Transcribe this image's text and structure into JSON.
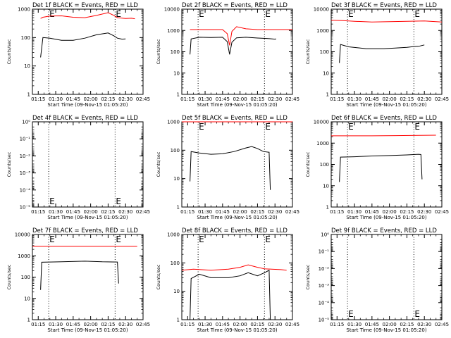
{
  "page": {
    "background": "#ffffff",
    "colors": {
      "events": "#000000",
      "lld": "#ff0000"
    }
  },
  "chart_data": [
    {
      "type": "line",
      "title": "Det 1f BLACK = Events, RED = LLD",
      "xlabel": "Start Time (09-Nov-15 01:05:20)",
      "ylabel": "Counts/sec",
      "x_ticks": [
        "01:15",
        "01:30",
        "01:45",
        "02:00",
        "02:15",
        "02:30",
        "02:45"
      ],
      "xlim_minutes": [
        5,
        100
      ],
      "y_scale": "log",
      "ylim": [
        1,
        1000
      ],
      "y_ticks": [
        "1",
        "10",
        "100",
        "1000"
      ],
      "vlines_minutes": [
        19,
        76
      ],
      "annotations": [
        "E",
        "E"
      ],
      "series": [
        {
          "color": "#ff0000",
          "x": [
            12,
            14,
            20,
            30,
            40,
            50,
            60,
            70,
            75,
            78,
            85,
            90,
            93
          ],
          "y": [
            470,
            520,
            570,
            580,
            520,
            500,
            600,
            750,
            600,
            500,
            470,
            480,
            460
          ]
        },
        {
          "color": "#000000",
          "x": [
            12,
            14,
            20,
            30,
            40,
            50,
            60,
            70,
            75,
            78,
            82,
            85
          ],
          "y": [
            20,
            100,
            95,
            80,
            80,
            95,
            125,
            145,
            115,
            95,
            88,
            90
          ]
        }
      ]
    },
    {
      "type": "line",
      "title": "Det 2f BLACK = Events, RED = LLD",
      "xlabel": "Start Time (09-Nov-15 01:05:20)",
      "ylabel": "Counts/sec",
      "x_ticks": [
        "01:15",
        "01:30",
        "01:45",
        "02:00",
        "02:15",
        "02:30",
        "02:45"
      ],
      "xlim_minutes": [
        5,
        100
      ],
      "y_scale": "log",
      "ylim": [
        1,
        10000
      ],
      "y_ticks": [
        "1",
        "10",
        "100",
        "1000",
        "10000"
      ],
      "vlines_minutes": [
        19,
        76
      ],
      "annotations": [
        "E",
        "E"
      ],
      "series": [
        {
          "color": "#ff0000",
          "x": [
            12,
            20,
            30,
            40,
            44,
            46,
            48,
            52,
            60,
            70,
            80,
            90,
            100
          ],
          "y": [
            1100,
            1100,
            1100,
            1100,
            700,
            200,
            900,
            1500,
            1200,
            1100,
            1100,
            1100,
            1100
          ]
        },
        {
          "color": "#000000",
          "x": [
            12,
            13,
            20,
            30,
            40,
            44,
            46,
            48,
            52,
            60,
            70,
            78,
            85,
            86
          ],
          "y": [
            75,
            400,
            480,
            470,
            480,
            300,
            75,
            280,
            450,
            480,
            440,
            420,
            390,
            400
          ]
        }
      ]
    },
    {
      "type": "line",
      "title": "Det 3f BLACK = Events, RED = LLD",
      "xlabel": "Start Time (09-Nov-15 01:05:20)",
      "ylabel": "Counts/sec",
      "x_ticks": [
        "01:15",
        "01:30",
        "01:45",
        "02:00",
        "02:15",
        "02:30",
        "02:45"
      ],
      "xlim_minutes": [
        5,
        100
      ],
      "y_scale": "log",
      "ylim": [
        1,
        10000
      ],
      "y_ticks": [
        "1",
        "10",
        "100",
        "1000",
        "10000"
      ],
      "vlines_minutes": [
        19,
        76
      ],
      "annotations": [
        "E",
        "E"
      ],
      "series": [
        {
          "color": "#ff0000",
          "x": [
            5,
            15,
            25,
            40,
            55,
            70,
            85,
            100
          ],
          "y": [
            3000,
            2900,
            2700,
            2500,
            2600,
            2700,
            2800,
            2500
          ]
        },
        {
          "color": "#000000",
          "x": [
            12,
            13,
            20,
            35,
            50,
            60,
            70,
            76,
            80,
            85
          ],
          "y": [
            30,
            220,
            170,
            140,
            140,
            150,
            160,
            175,
            180,
            210
          ]
        }
      ]
    },
    {
      "type": "line",
      "title": "Det 4f BLACK = Events, RED = LLD",
      "xlabel": "Start Time (09-Nov-15 01:05:20)",
      "ylabel": "Counts/sec",
      "x_ticks": [
        "01:15",
        "01:30",
        "01:45",
        "02:00",
        "02:15",
        "02:30",
        "02:45"
      ],
      "xlim_minutes": [
        5,
        100
      ],
      "y_scale": "log",
      "ylim": [
        1,
        1e-05
      ],
      "y_ticks": [
        "10⁰",
        "10⁻¹",
        "10⁻²",
        "10⁻³",
        "10⁻⁴",
        "10⁻⁵"
      ],
      "vlines_minutes": [
        19,
        76
      ],
      "annotations": [
        "E",
        "E"
      ],
      "series": []
    },
    {
      "type": "line",
      "title": "Det 5f BLACK = Events, RED = LLD",
      "xlabel": "Start Time (09-Nov-15 01:05:20)",
      "ylabel": "Counts/sec",
      "x_ticks": [
        "01:15",
        "01:30",
        "01:45",
        "02:00",
        "02:15",
        "02:30",
        "02:45"
      ],
      "xlim_minutes": [
        5,
        100
      ],
      "y_scale": "log",
      "ylim": [
        1,
        1000
      ],
      "y_ticks": [
        "1",
        "10",
        "100",
        "1000"
      ],
      "vlines_minutes": [
        19,
        76
      ],
      "annotations": [
        "E",
        "E"
      ],
      "series": [
        {
          "color": "#ff0000",
          "x": [
            5,
            30,
            60,
            90,
            100
          ],
          "y": [
            1000,
            1000,
            1000,
            1000,
            1000
          ]
        },
        {
          "color": "#000000",
          "x": [
            12,
            13,
            20,
            30,
            40,
            50,
            60,
            65,
            70,
            75,
            80,
            81
          ],
          "y": [
            8,
            90,
            80,
            72,
            75,
            90,
            120,
            135,
            115,
            90,
            85,
            4
          ]
        }
      ]
    },
    {
      "type": "line",
      "title": "Det 6f BLACK = Events, RED = LLD",
      "xlabel": "Start Time (09-Nov-15 01:05:20)",
      "ylabel": "Counts/sec",
      "x_ticks": [
        "01:15",
        "01:30",
        "01:45",
        "02:00",
        "02:15",
        "02:30",
        "02:45"
      ],
      "xlim_minutes": [
        5,
        100
      ],
      "y_scale": "log",
      "ylim": [
        1,
        10000
      ],
      "y_ticks": [
        "1",
        "10",
        "100",
        "1000",
        "10000"
      ],
      "vlines_minutes": [
        19,
        76
      ],
      "annotations": [
        "E",
        "E"
      ],
      "series": [
        {
          "color": "#ff0000",
          "x": [
            5,
            20,
            40,
            60,
            80,
            95
          ],
          "y": [
            2200,
            2200,
            2200,
            2250,
            2300,
            2350
          ]
        },
        {
          "color": "#000000",
          "x": [
            12,
            13,
            25,
            40,
            55,
            70,
            80,
            82,
            83
          ],
          "y": [
            15,
            220,
            230,
            250,
            260,
            280,
            300,
            290,
            20
          ]
        }
      ]
    },
    {
      "type": "line",
      "title": "Det 7f BLACK = Events, RED = LLD",
      "xlabel": "Start Time (09-Nov-15 01:05:20)",
      "ylabel": "Counts/sec",
      "x_ticks": [
        "01:15",
        "01:30",
        "01:45",
        "02:00",
        "02:15",
        "02:30",
        "02:45"
      ],
      "xlim_minutes": [
        5,
        100
      ],
      "y_scale": "log",
      "ylim": [
        1,
        10000
      ],
      "y_ticks": [
        "1",
        "10",
        "100",
        "1000",
        "10000"
      ],
      "vlines_minutes": [
        19,
        76
      ],
      "annotations": [
        "E",
        "E"
      ],
      "series": [
        {
          "color": "#ff0000",
          "x": [
            5,
            20,
            40,
            60,
            80,
            95
          ],
          "y": [
            2800,
            2800,
            2800,
            2800,
            2800,
            2800
          ]
        },
        {
          "color": "#000000",
          "x": [
            12,
            13,
            30,
            50,
            65,
            78,
            79
          ],
          "y": [
            25,
            500,
            520,
            560,
            520,
            510,
            50
          ]
        }
      ]
    },
    {
      "type": "line",
      "title": "Det 8f BLACK = Events, RED = LLD",
      "xlabel": "Start Time (09-Nov-15 01:05:20)",
      "ylabel": "Counts/sec",
      "x_ticks": [
        "01:15",
        "01:30",
        "01:45",
        "02:00",
        "02:15",
        "02:30",
        "02:45"
      ],
      "xlim_minutes": [
        5,
        100
      ],
      "y_scale": "log",
      "ylim": [
        1,
        1000
      ],
      "y_ticks": [
        "1",
        "10",
        "100",
        "1000"
      ],
      "vlines_minutes": [
        19,
        76
      ],
      "annotations": [
        "E",
        "E"
      ],
      "series": [
        {
          "color": "#ff0000",
          "x": [
            5,
            15,
            30,
            45,
            55,
            62,
            70,
            76,
            82,
            90,
            95
          ],
          "y": [
            55,
            60,
            55,
            60,
            70,
            85,
            70,
            62,
            60,
            58,
            55
          ]
        },
        {
          "color": "#000000",
          "x": [
            12,
            13,
            20,
            30,
            45,
            55,
            62,
            70,
            76,
            80,
            81
          ],
          "y": [
            1,
            28,
            40,
            30,
            30,
            35,
            45,
            35,
            45,
            55,
            1
          ]
        }
      ]
    },
    {
      "type": "line",
      "title": "Det 9f BLACK = Events, RED = LLD",
      "xlabel": "Start Time (09-Nov-15 01:05:20)",
      "ylabel": "Counts/sec",
      "x_ticks": [
        "01:15",
        "01:30",
        "01:45",
        "02:00",
        "02:15",
        "02:30",
        "02:45"
      ],
      "xlim_minutes": [
        5,
        100
      ],
      "y_scale": "log",
      "ylim": [
        1,
        1e-05
      ],
      "y_ticks": [
        "10⁰",
        "10⁻¹",
        "10⁻²",
        "10⁻³",
        "10⁻⁴",
        "10⁻⁵"
      ],
      "vlines_minutes": [
        19,
        76
      ],
      "annotations": [
        "E",
        "E"
      ],
      "series": []
    }
  ]
}
